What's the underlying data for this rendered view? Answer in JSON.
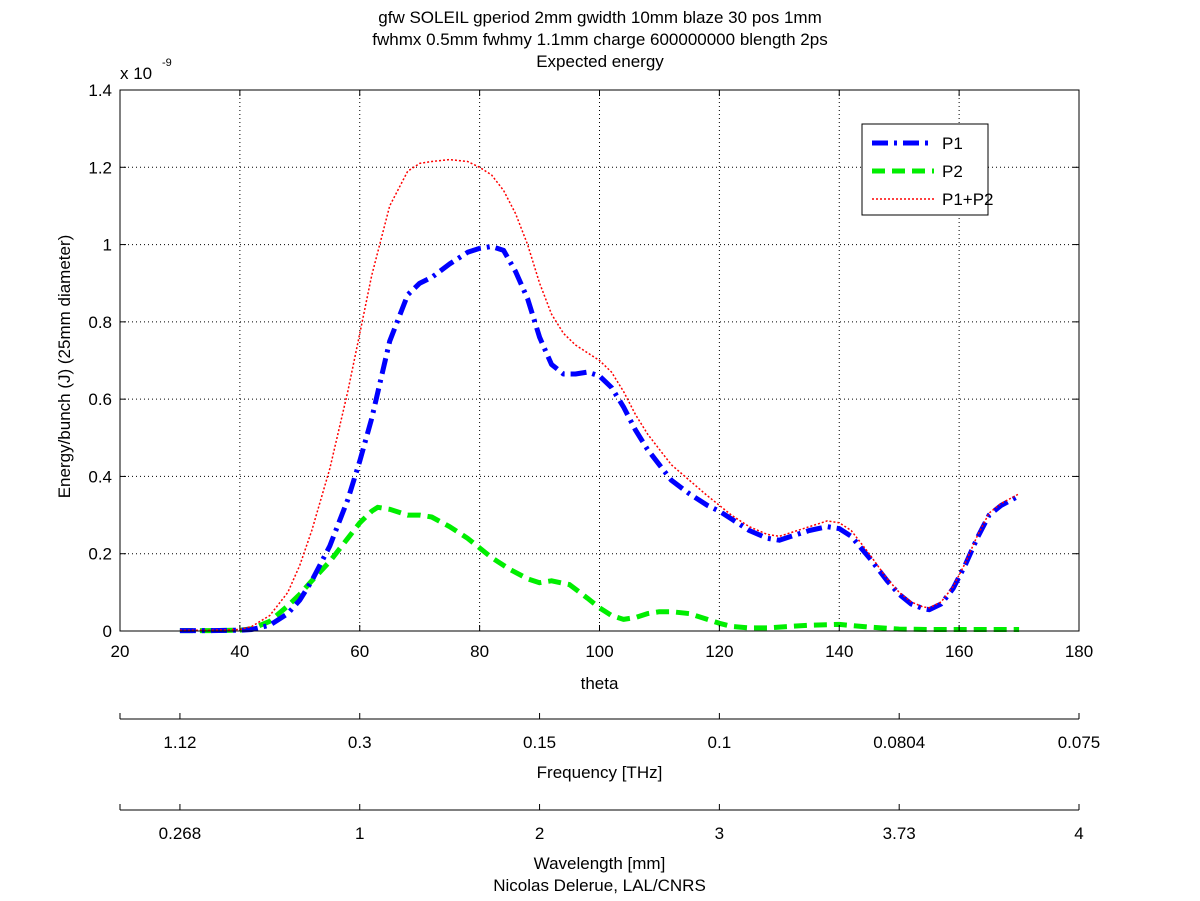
{
  "chart_data": {
    "type": "line",
    "title": [
      "gfw SOLEIL gperiod 2mm gwidth 10mm blaze 30 pos 1mm",
      "fwhmx 0.5mm fwhmy 1.1mm charge 600000000 blength 2ps",
      "Expected energy"
    ],
    "xlabel": "theta",
    "ylabel": "Energy/bunch (J) (25mm diameter)",
    "exponent_base": "x 10",
    "exponent_power": "-9",
    "xlim": [
      20,
      180
    ],
    "ylim": [
      0,
      1.4
    ],
    "grid": true,
    "grid_style": "dotted",
    "legend_position": "top-right",
    "x_ticks": [
      20,
      40,
      60,
      80,
      100,
      120,
      140,
      160,
      180
    ],
    "x_tick_labels": [
      "20",
      "40",
      "60",
      "80",
      "100",
      "120",
      "140",
      "160",
      "180"
    ],
    "y_ticks": [
      0,
      0.2,
      0.4,
      0.6,
      0.8,
      1.0,
      1.2,
      1.4
    ],
    "y_tick_labels": [
      "0",
      "0.2",
      "0.4",
      "0.6",
      "0.8",
      "1",
      "1.2",
      "1.4"
    ],
    "series": [
      {
        "name": "P1",
        "color": "#0000ff",
        "style": "dash-dot",
        "x": [
          30,
          35,
          40,
          42,
          45,
          48,
          50,
          52,
          55,
          58,
          60,
          62,
          65,
          68,
          70,
          72,
          75,
          78,
          80,
          82,
          84,
          86,
          88,
          90,
          92,
          94,
          96,
          98,
          100,
          102,
          104,
          106,
          108,
          110,
          112,
          115,
          118,
          120,
          122,
          125,
          128,
          130,
          132,
          135,
          138,
          140,
          142,
          145,
          148,
          150,
          152,
          154,
          155,
          157,
          159,
          161,
          163,
          165,
          167,
          170
        ],
        "y": [
          0.001,
          0.001,
          0.002,
          0.004,
          0.015,
          0.045,
          0.08,
          0.13,
          0.22,
          0.34,
          0.44,
          0.55,
          0.75,
          0.87,
          0.9,
          0.915,
          0.95,
          0.98,
          0.99,
          0.995,
          0.985,
          0.93,
          0.86,
          0.76,
          0.69,
          0.665,
          0.665,
          0.67,
          0.66,
          0.63,
          0.58,
          0.52,
          0.47,
          0.43,
          0.39,
          0.355,
          0.325,
          0.31,
          0.29,
          0.26,
          0.24,
          0.235,
          0.245,
          0.26,
          0.27,
          0.265,
          0.245,
          0.19,
          0.13,
          0.095,
          0.07,
          0.058,
          0.055,
          0.07,
          0.11,
          0.17,
          0.24,
          0.3,
          0.325,
          0.35
        ]
      },
      {
        "name": "P2",
        "color": "#00ee00",
        "style": "dashed",
        "x": [
          30,
          35,
          40,
          42,
          45,
          48,
          50,
          52,
          55,
          58,
          60,
          62,
          63,
          65,
          68,
          70,
          72,
          75,
          78,
          80,
          82,
          85,
          88,
          90,
          92,
          95,
          98,
          100,
          102,
          104,
          106,
          108,
          110,
          112,
          115,
          118,
          120,
          122,
          125,
          128,
          130,
          135,
          140,
          145,
          150,
          155,
          160,
          165,
          170
        ],
        "y": [
          0.001,
          0.001,
          0.002,
          0.006,
          0.025,
          0.065,
          0.095,
          0.13,
          0.18,
          0.24,
          0.28,
          0.31,
          0.32,
          0.315,
          0.3,
          0.3,
          0.295,
          0.27,
          0.24,
          0.215,
          0.19,
          0.16,
          0.135,
          0.125,
          0.13,
          0.12,
          0.085,
          0.06,
          0.04,
          0.03,
          0.035,
          0.045,
          0.05,
          0.05,
          0.045,
          0.03,
          0.02,
          0.012,
          0.008,
          0.008,
          0.01,
          0.015,
          0.017,
          0.01,
          0.005,
          0.004,
          0.004,
          0.004,
          0.004
        ]
      },
      {
        "name": "P1+P2",
        "color": "#ff0000",
        "style": "dotted",
        "x": [
          30,
          35,
          40,
          42,
          45,
          48,
          50,
          52,
          55,
          58,
          60,
          62,
          65,
          68,
          70,
          72,
          75,
          78,
          80,
          82,
          84,
          86,
          88,
          90,
          92,
          94,
          96,
          98,
          100,
          102,
          104,
          106,
          108,
          110,
          112,
          115,
          118,
          120,
          122,
          125,
          128,
          130,
          132,
          135,
          138,
          140,
          142,
          145,
          148,
          150,
          152,
          154,
          155,
          157,
          159,
          161,
          163,
          165,
          167,
          170
        ],
        "y": [
          0.002,
          0.002,
          0.004,
          0.012,
          0.04,
          0.1,
          0.17,
          0.26,
          0.42,
          0.62,
          0.77,
          0.92,
          1.1,
          1.19,
          1.21,
          1.215,
          1.22,
          1.215,
          1.2,
          1.18,
          1.14,
          1.08,
          1.0,
          0.9,
          0.82,
          0.77,
          0.74,
          0.72,
          0.7,
          0.67,
          0.62,
          0.56,
          0.51,
          0.47,
          0.43,
          0.39,
          0.35,
          0.325,
          0.3,
          0.27,
          0.25,
          0.245,
          0.255,
          0.27,
          0.285,
          0.28,
          0.26,
          0.2,
          0.135,
          0.1,
          0.075,
          0.062,
          0.06,
          0.075,
          0.115,
          0.175,
          0.245,
          0.305,
          0.33,
          0.355
        ]
      }
    ],
    "secondary_axes": [
      {
        "label": "Frequency [THz]",
        "ticks_theta": [
          30,
          60,
          90,
          120,
          150,
          180
        ],
        "tick_labels": [
          "1.12",
          "0.3",
          "0.15",
          "0.1",
          "0.0804",
          "0.075"
        ]
      },
      {
        "label": "Wavelength [mm]",
        "ticks_theta": [
          30,
          60,
          90,
          120,
          150,
          180
        ],
        "tick_labels": [
          "0.268",
          "1",
          "2",
          "3",
          "3.73",
          "4"
        ]
      }
    ],
    "credit": "Nicolas Delerue, LAL/CNRS"
  }
}
